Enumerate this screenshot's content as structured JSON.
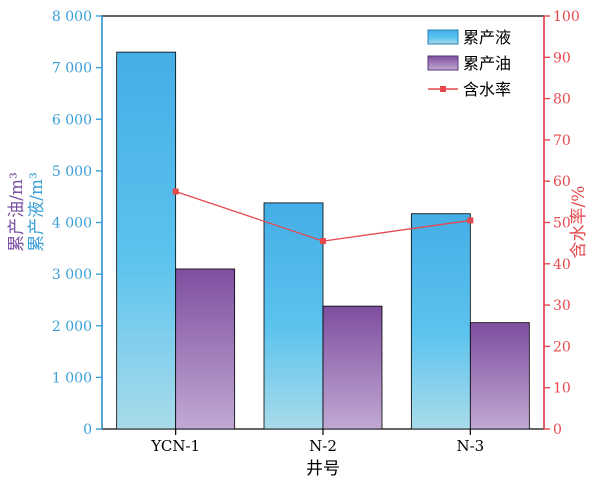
{
  "chart_data": {
    "type": "bar",
    "xlabel": "井号",
    "categories": [
      "YCN-1",
      "N-2",
      "N-3"
    ],
    "y_left": {
      "ylim": [
        0,
        8000
      ],
      "ticks": [
        "0",
        "1 000",
        "2 000",
        "3 000",
        "4 000",
        "5 000",
        "6 000",
        "7 000",
        "8 000"
      ],
      "label_oil": "累产油/m³",
      "label_liquid": "累产液/m³",
      "color": "#3a9fd8",
      "label_oil_color": "#7a4fa0"
    },
    "y_right": {
      "ylim": [
        0,
        100
      ],
      "ticks": [
        "0",
        "10",
        "20",
        "30",
        "40",
        "50",
        "60",
        "70",
        "80",
        "90",
        "100"
      ],
      "label": "含水率/%",
      "color": "#e5484d"
    },
    "series": [
      {
        "name": "累产液",
        "type": "bar",
        "axis": "left",
        "values": [
          7300,
          4380,
          4170
        ],
        "color_top": "#44aee6",
        "color_bottom": "#a9dbea"
      },
      {
        "name": "累产油",
        "type": "bar",
        "axis": "left",
        "values": [
          3100,
          2380,
          2060
        ],
        "color_top": "#7e4e9f",
        "color_bottom": "#c1a9d4"
      },
      {
        "name": "含水率",
        "type": "line",
        "axis": "right",
        "values": [
          57.5,
          45.5,
          50.5
        ],
        "color": "#e5484d"
      }
    ],
    "legend": {
      "position": "top-right"
    },
    "grid": false
  }
}
